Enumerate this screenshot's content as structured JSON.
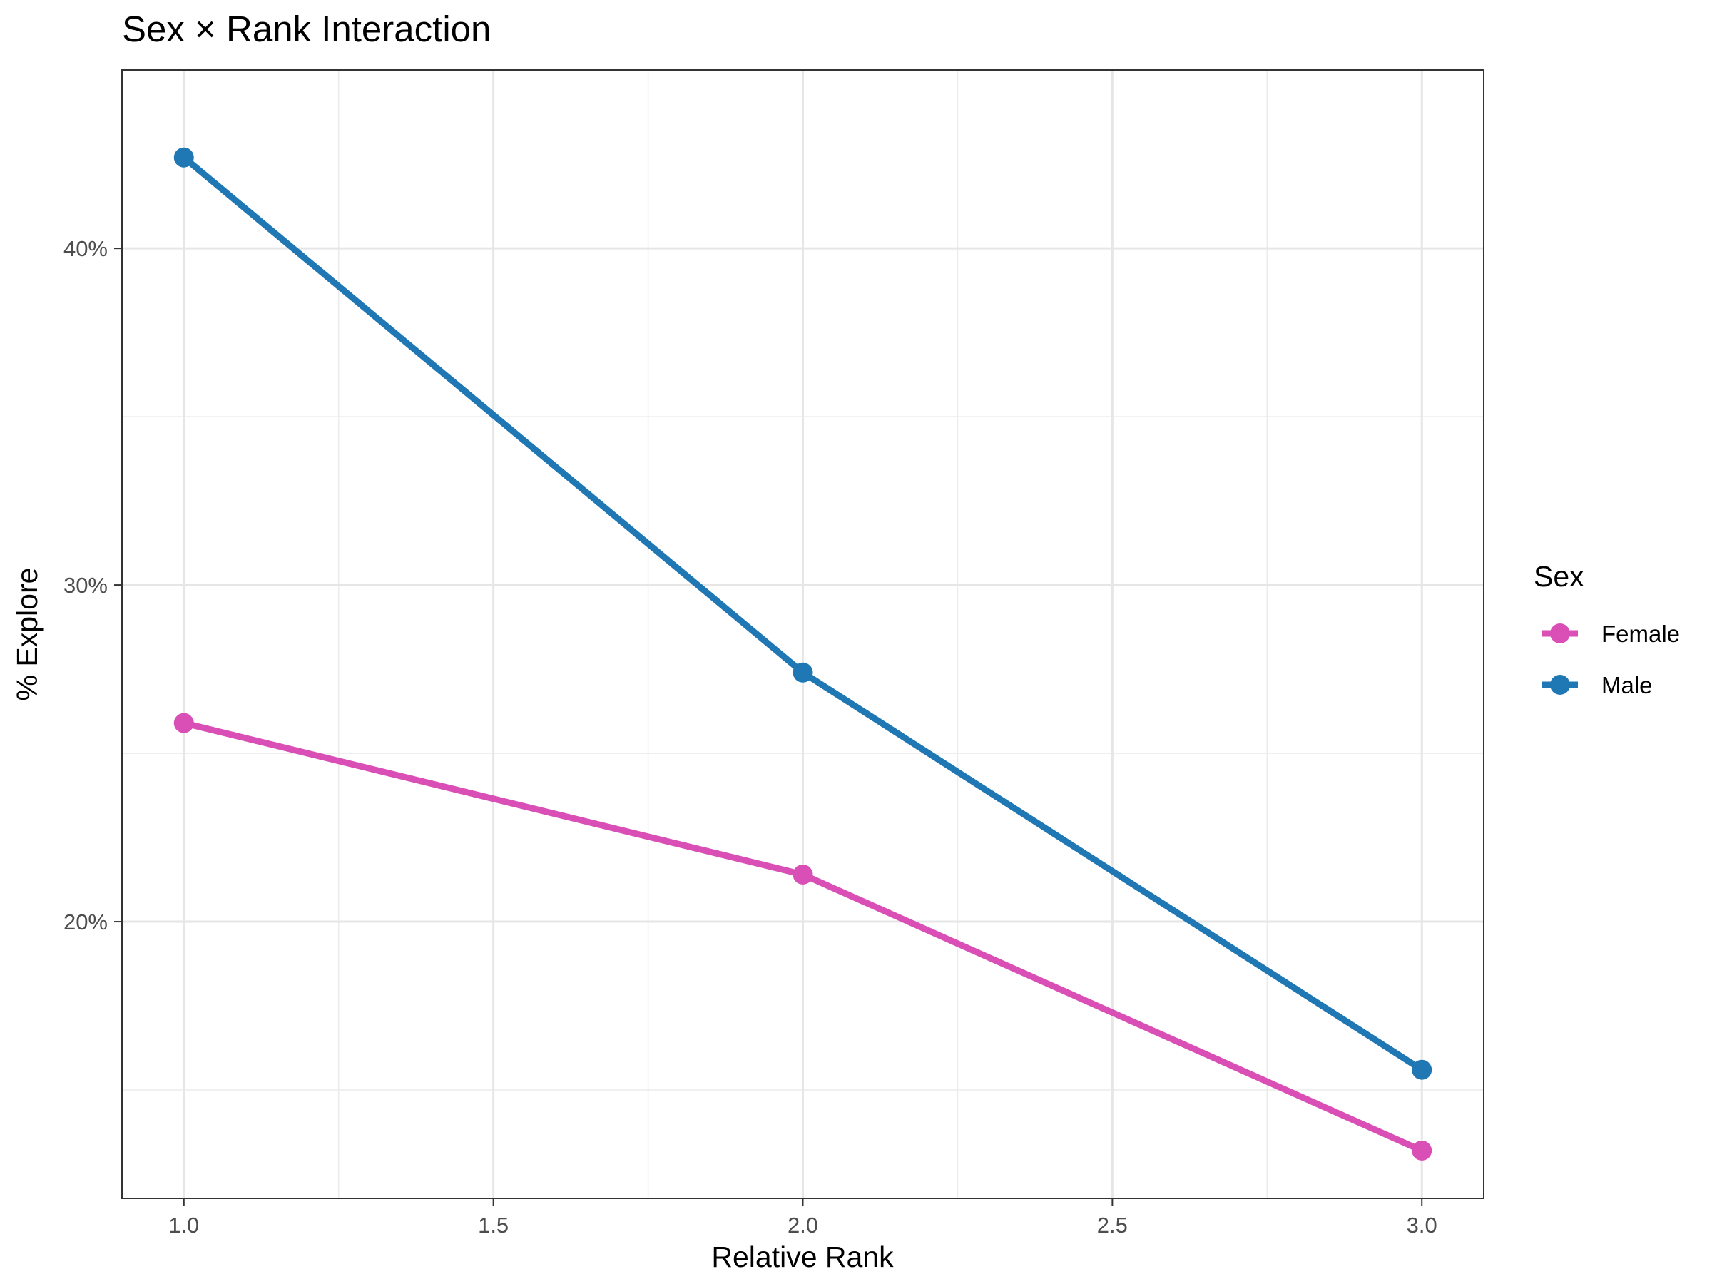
{
  "chart_data": {
    "type": "line",
    "title": "Sex × Rank Interaction",
    "xlabel": "Relative Rank",
    "ylabel": "% Explore",
    "x": [
      1.0,
      2.0,
      3.0
    ],
    "xlim": [
      0.9,
      3.1
    ],
    "ylim": [
      0.1178,
      0.453
    ],
    "x_ticks": [
      1.0,
      1.5,
      2.0,
      2.5,
      3.0
    ],
    "x_tick_labels": [
      "1.0",
      "1.5",
      "2.0",
      "2.5",
      "3.0"
    ],
    "y_ticks": [
      0.2,
      0.3,
      0.4
    ],
    "y_tick_labels": [
      "20%",
      "30%",
      "40%"
    ],
    "grid": true,
    "legend": {
      "title": "Sex",
      "position": "right"
    },
    "series": [
      {
        "name": "Female",
        "color": "#d94fb6",
        "values": [
          0.259,
          0.214,
          0.132
        ]
      },
      {
        "name": "Male",
        "color": "#1f77b4",
        "values": [
          0.427,
          0.274,
          0.156
        ]
      }
    ]
  }
}
